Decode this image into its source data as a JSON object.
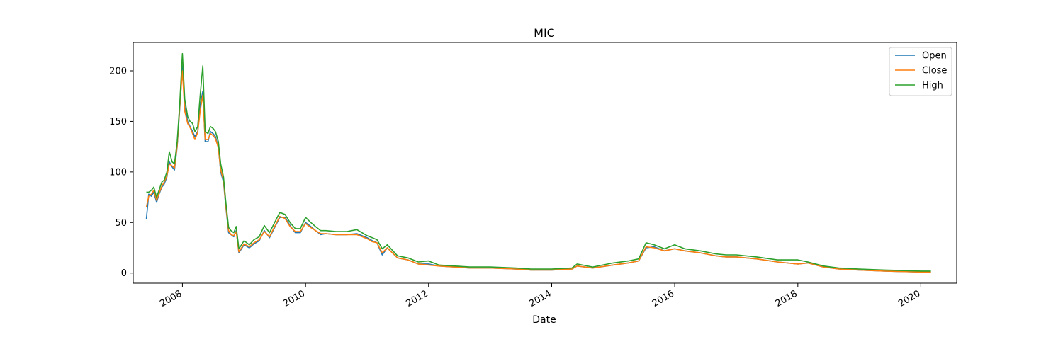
{
  "chart_data": {
    "type": "line",
    "title": "MIC",
    "xlabel": "Date",
    "ylabel": "",
    "xlim": [
      "2007-03-15",
      "2020-08-01"
    ],
    "ylim": [
      -10,
      228
    ],
    "x_ticks": [
      "2008",
      "2010",
      "2012",
      "2014",
      "2016",
      "2018",
      "2020"
    ],
    "y_ticks": [
      0,
      50,
      100,
      150,
      200
    ],
    "grid": false,
    "legend_position": "top-right",
    "colors": {
      "Open": "#1f77b4",
      "Close": "#ff7f0e",
      "High": "#2ca02c"
    },
    "x": [
      "2007-06-01",
      "2007-06-15",
      "2007-07-01",
      "2007-07-15",
      "2007-08-01",
      "2007-08-15",
      "2007-09-01",
      "2007-09-15",
      "2007-10-01",
      "2007-10-15",
      "2007-11-01",
      "2007-11-15",
      "2007-12-01",
      "2007-12-15",
      "2008-01-01",
      "2008-01-15",
      "2008-02-01",
      "2008-02-15",
      "2008-03-01",
      "2008-03-15",
      "2008-04-01",
      "2008-04-15",
      "2008-05-01",
      "2008-05-15",
      "2008-06-01",
      "2008-06-15",
      "2008-07-01",
      "2008-07-15",
      "2008-08-01",
      "2008-08-15",
      "2008-09-01",
      "2008-09-15",
      "2008-10-01",
      "2008-10-15",
      "2008-11-01",
      "2008-11-15",
      "2008-12-01",
      "2009-01-01",
      "2009-02-01",
      "2009-03-01",
      "2009-04-01",
      "2009-05-01",
      "2009-06-01",
      "2009-07-01",
      "2009-08-01",
      "2009-09-01",
      "2009-10-01",
      "2009-11-01",
      "2009-12-01",
      "2010-01-01",
      "2010-02-01",
      "2010-03-01",
      "2010-04-01",
      "2010-05-01",
      "2010-07-01",
      "2010-09-01",
      "2010-11-01",
      "2011-01-01",
      "2011-02-01",
      "2011-03-01",
      "2011-04-01",
      "2011-05-01",
      "2011-07-01",
      "2011-09-01",
      "2011-11-01",
      "2012-01-01",
      "2012-03-01",
      "2012-06-01",
      "2012-09-01",
      "2013-01-01",
      "2013-06-01",
      "2013-09-01",
      "2014-01-01",
      "2014-05-01",
      "2014-06-01",
      "2014-09-01",
      "2015-01-01",
      "2015-04-01",
      "2015-06-01",
      "2015-07-15",
      "2015-09-01",
      "2015-11-01",
      "2016-01-01",
      "2016-03-01",
      "2016-06-01",
      "2016-09-01",
      "2016-11-01",
      "2017-01-01",
      "2017-05-01",
      "2017-09-01",
      "2018-01-01",
      "2018-03-01",
      "2018-06-01",
      "2018-09-01",
      "2019-01-01",
      "2019-06-01",
      "2020-01-01",
      "2020-03-01"
    ],
    "series": [
      {
        "name": "Open",
        "values": [
          53,
          78,
          76,
          80,
          70,
          78,
          85,
          88,
          95,
          110,
          105,
          102,
          125,
          160,
          205,
          165,
          150,
          145,
          140,
          135,
          140,
          165,
          180,
          130,
          130,
          140,
          138,
          135,
          125,
          100,
          90,
          65,
          40,
          38,
          36,
          42,
          20,
          28,
          25,
          29,
          32,
          42,
          35,
          45,
          55,
          55,
          47,
          40,
          40,
          50,
          46,
          42,
          38,
          39,
          38,
          38,
          39,
          35,
          32,
          30,
          18,
          25,
          15,
          13,
          9,
          9,
          7,
          6,
          5,
          5,
          4,
          3,
          3,
          4,
          7,
          5,
          8,
          10,
          12,
          25,
          26,
          22,
          24,
          22,
          20,
          17,
          16,
          16,
          14,
          11,
          9,
          10,
          6,
          4,
          3,
          2,
          1,
          1
        ]
      },
      {
        "name": "Close",
        "values": [
          65,
          76,
          78,
          82,
          72,
          79,
          86,
          90,
          96,
          108,
          106,
          104,
          126,
          162,
          200,
          160,
          148,
          144,
          138,
          132,
          139,
          160,
          176,
          132,
          132,
          138,
          136,
          133,
          124,
          102,
          92,
          66,
          42,
          38,
          37,
          41,
          21,
          29,
          26,
          30,
          33,
          41,
          36,
          46,
          56,
          54,
          46,
          41,
          41,
          49,
          45,
          42,
          39,
          39,
          38,
          38,
          38,
          34,
          31,
          30,
          20,
          25,
          15,
          13,
          9,
          8,
          7,
          6,
          5,
          5,
          4,
          3,
          3,
          4,
          7,
          5,
          8,
          10,
          12,
          26,
          25,
          22,
          24,
          22,
          20,
          17,
          16,
          16,
          14,
          11,
          9,
          10,
          6,
          4,
          3,
          2,
          1,
          1
        ]
      },
      {
        "name": "High",
        "values": [
          80,
          80,
          82,
          85,
          75,
          82,
          90,
          92,
          100,
          120,
          110,
          108,
          130,
          165,
          217,
          172,
          155,
          150,
          148,
          140,
          145,
          175,
          205,
          140,
          138,
          145,
          143,
          140,
          130,
          108,
          95,
          70,
          45,
          42,
          40,
          46,
          24,
          32,
          28,
          33,
          36,
          47,
          40,
          50,
          60,
          58,
          50,
          44,
          44,
          55,
          50,
          46,
          42,
          42,
          41,
          41,
          43,
          37,
          35,
          33,
          24,
          28,
          17,
          15,
          11,
          12,
          8,
          7,
          6,
          6,
          5,
          4,
          4,
          5,
          9,
          6,
          10,
          12,
          14,
          30,
          28,
          24,
          28,
          24,
          22,
          19,
          18,
          18,
          16,
          13,
          13,
          11,
          7,
          5,
          4,
          3,
          2,
          2
        ]
      }
    ]
  }
}
